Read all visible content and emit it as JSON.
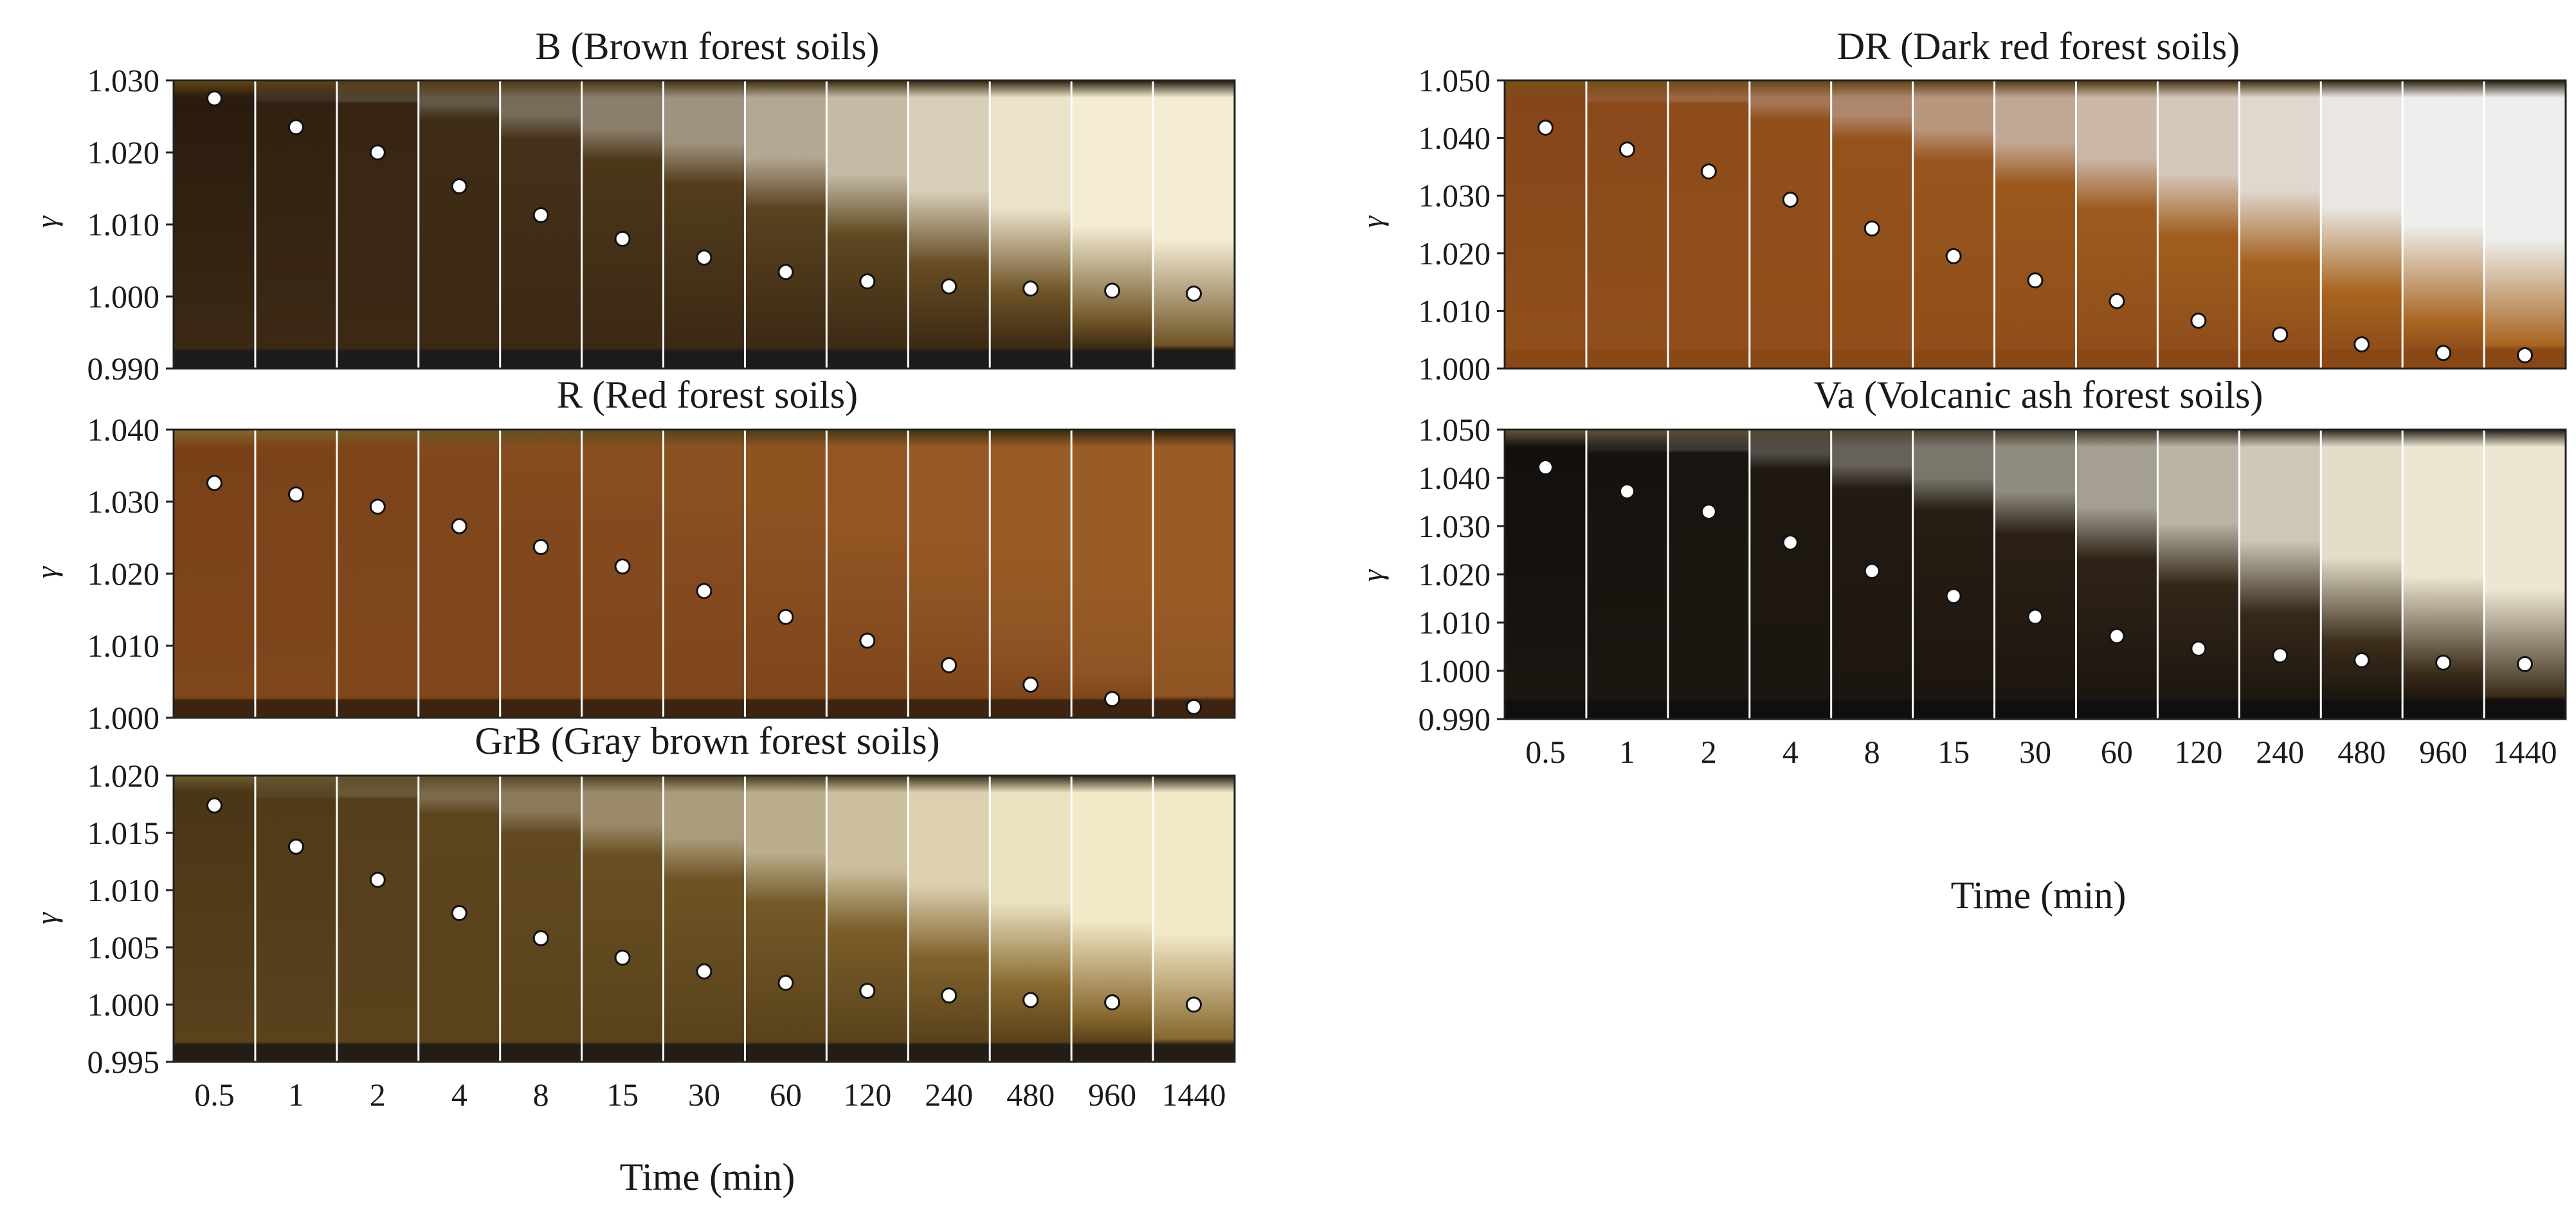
{
  "figure": {
    "xlabel": "Time (min)"
  },
  "chart_data": [
    {
      "type": "scatter",
      "title": "B (Brown forest soils)",
      "xlabel": "",
      "ylabel": "γ",
      "categories": [
        "0.5",
        "1",
        "2",
        "4",
        "8",
        "15",
        "30",
        "60",
        "120",
        "240",
        "480",
        "960",
        "1440"
      ],
      "ylim": [
        0.99,
        1.03
      ],
      "yticks": [
        "0.990",
        "1.000",
        "1.010",
        "1.020",
        "1.030"
      ],
      "series": [
        {
          "name": "γ",
          "values": [
            1.0275,
            1.0235,
            1.02,
            1.0153,
            1.0113,
            1.008,
            1.0054,
            1.0034,
            1.0021,
            1.0014,
            1.0011,
            1.0008,
            1.0004
          ]
        }
      ],
      "colors": {
        "dark": "#2a1b0e",
        "mid": "#6e5326",
        "light": "#f4ecd3",
        "glow": "#c98d2c",
        "sediment": "#1c1a1c"
      }
    },
    {
      "type": "scatter",
      "title": "R (Red forest soils)",
      "xlabel": "",
      "ylabel": "γ",
      "categories": [
        "0.5",
        "1",
        "2",
        "4",
        "8",
        "15",
        "30",
        "60",
        "120",
        "240",
        "480",
        "960",
        "1440"
      ],
      "ylim": [
        1.0,
        1.04
      ],
      "yticks": [
        "1.000",
        "1.010",
        "1.020",
        "1.030",
        "1.040"
      ],
      "series": [
        {
          "name": "γ",
          "values": [
            1.0326,
            1.031,
            1.0293,
            1.0266,
            1.0237,
            1.021,
            1.0176,
            1.014,
            1.0107,
            1.0073,
            1.0046,
            1.0026,
            1.0015
          ]
        }
      ],
      "colors": {
        "dark": "#7a4119",
        "mid": "#8f5424",
        "light": "#9a5c26",
        "glow": "#ffd257",
        "sediment": "#3e2410"
      }
    },
    {
      "type": "scatter",
      "title": "GrB (Gray brown forest soils)",
      "xlabel": "Time (min)",
      "ylabel": "γ",
      "categories": [
        "0.5",
        "1",
        "2",
        "4",
        "8",
        "15",
        "30",
        "60",
        "120",
        "240",
        "480",
        "960",
        "1440"
      ],
      "ylim": [
        0.995,
        1.02
      ],
      "yticks": [
        "0.995",
        "1.000",
        "1.005",
        "1.010",
        "1.015",
        "1.020"
      ],
      "series": [
        {
          "name": "γ",
          "values": [
            1.0174,
            1.0138,
            1.0109,
            1.008,
            1.0058,
            1.0041,
            1.0029,
            1.0019,
            1.0012,
            1.0008,
            1.0004,
            1.0002,
            1.0
          ]
        }
      ],
      "colors": {
        "dark": "#4a3516",
        "mid": "#87682e",
        "light": "#f3e9c8",
        "glow": "#d8b55a",
        "sediment": "#231d16"
      }
    },
    {
      "type": "scatter",
      "title": "DR (Dark red forest soils)",
      "xlabel": "",
      "ylabel": "γ",
      "categories": [
        "0.5",
        "1",
        "2",
        "4",
        "8",
        "15",
        "30",
        "60",
        "120",
        "240",
        "480",
        "960",
        "1440"
      ],
      "ylim": [
        1.0,
        1.05
      ],
      "yticks": [
        "1.000",
        "1.010",
        "1.020",
        "1.030",
        "1.040",
        "1.050"
      ],
      "series": [
        {
          "name": "γ",
          "values": [
            1.0418,
            1.038,
            1.0342,
            1.0293,
            1.0243,
            1.0195,
            1.0153,
            1.0117,
            1.0083,
            1.0059,
            1.0042,
            1.0027,
            1.0023
          ]
        }
      ],
      "colors": {
        "dark": "#87461a",
        "mid": "#a8641f",
        "light": "#eeeeec",
        "glow": "#f2a830",
        "sediment": "#8a4716"
      }
    },
    {
      "type": "scatter",
      "title": "Va (Volcanic ash forest soils)",
      "xlabel": "Time (min)",
      "ylabel": "γ",
      "categories": [
        "0.5",
        "1",
        "2",
        "4",
        "8",
        "15",
        "30",
        "60",
        "120",
        "240",
        "480",
        "960",
        "1440"
      ],
      "ylim": [
        0.99,
        1.05
      ],
      "yticks": [
        "0.990",
        "1.000",
        "1.010",
        "1.020",
        "1.030",
        "1.040",
        "1.050"
      ],
      "series": [
        {
          "name": "γ",
          "values": [
            1.0422,
            1.0372,
            1.033,
            1.0266,
            1.0207,
            1.0155,
            1.0112,
            1.0072,
            1.0046,
            1.0032,
            1.0022,
            1.0017,
            1.0014
          ]
        }
      ],
      "colors": {
        "dark": "#120f0d",
        "mid": "#3b2c1a",
        "light": "#ece6d2",
        "glow": "#c9b07a",
        "sediment": "#100e0e"
      }
    }
  ]
}
